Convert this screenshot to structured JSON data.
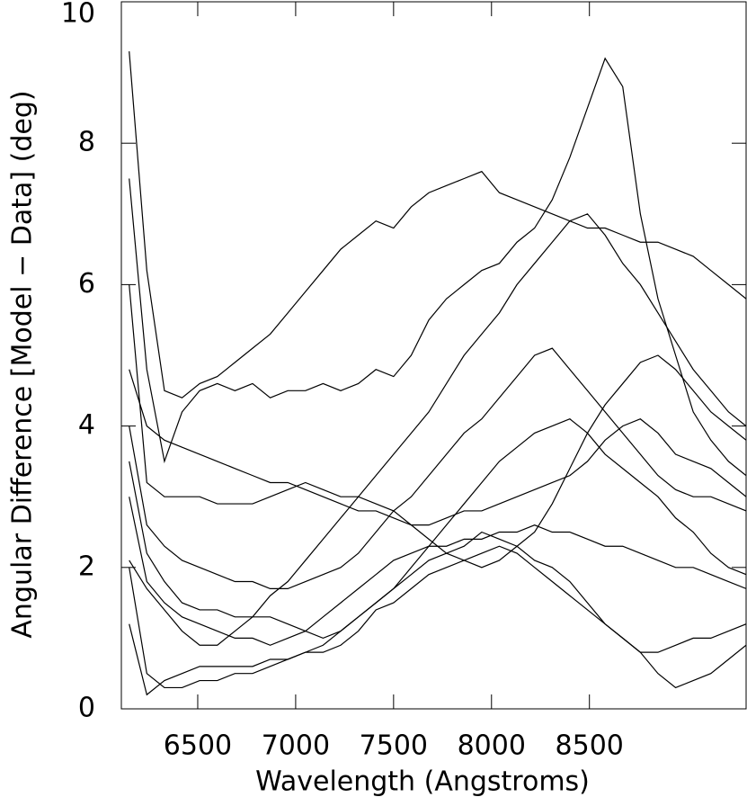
{
  "chart_data": {
    "type": "line",
    "x_label": "Wavelength (Angstroms)",
    "y_label": "Angular Difference [Model − Data] (deg)",
    "color": "#000000",
    "xlim": [
      6110,
      9300
    ],
    "xticks": [
      6500,
      7000,
      7500,
      8000,
      8500
    ],
    "ylim": [
      0,
      10
    ],
    "yticks": [
      0,
      2,
      4,
      6,
      8,
      10
    ],
    "x": [
      6150,
      6240,
      6330,
      6420,
      6510,
      6600,
      6690,
      6780,
      6870,
      6960,
      7050,
      7140,
      7230,
      7320,
      7410,
      7500,
      7590,
      7680,
      7770,
      7860,
      7950,
      8040,
      8130,
      8220,
      8310,
      8400,
      8490,
      8580,
      8670,
      8760,
      8850,
      8940,
      9030,
      9120,
      9210,
      9300
    ],
    "series": [
      {
        "values": [
          9.3,
          6.2,
          4.5,
          4.4,
          4.6,
          4.7,
          4.9,
          5.1,
          5.3,
          5.6,
          5.9,
          6.2,
          6.5,
          6.7,
          6.9,
          6.8,
          7.1,
          7.3,
          7.4,
          7.5,
          7.6,
          7.3,
          7.2,
          7.1,
          7.0,
          6.9,
          6.8,
          6.8,
          6.7,
          6.6,
          6.6,
          6.5,
          6.4,
          6.2,
          6.0,
          5.8
        ]
      },
      {
        "values": [
          7.5,
          4.8,
          3.5,
          4.2,
          4.5,
          4.6,
          4.5,
          4.6,
          4.4,
          4.5,
          4.5,
          4.6,
          4.5,
          4.6,
          4.8,
          4.7,
          5.0,
          5.5,
          5.8,
          6.0,
          6.2,
          6.3,
          6.6,
          6.8,
          7.2,
          7.8,
          8.5,
          9.2,
          8.8,
          7.0,
          5.8,
          5.0,
          4.2,
          3.8,
          3.5,
          3.3
        ]
      },
      {
        "values": [
          4.8,
          4.0,
          3.8,
          3.7,
          3.6,
          3.5,
          3.4,
          3.3,
          3.2,
          3.2,
          3.1,
          3.0,
          2.9,
          2.8,
          2.8,
          2.7,
          2.6,
          2.6,
          2.7,
          2.8,
          2.8,
          2.9,
          3.0,
          3.1,
          3.2,
          3.3,
          3.5,
          3.8,
          4.0,
          4.1,
          3.9,
          3.6,
          3.5,
          3.4,
          3.2,
          3.0
        ]
      },
      {
        "values": [
          3.0,
          1.8,
          1.5,
          1.3,
          1.2,
          1.1,
          1.0,
          1.0,
          0.9,
          1.0,
          1.1,
          1.3,
          1.5,
          1.7,
          1.9,
          2.1,
          2.2,
          2.3,
          2.3,
          2.4,
          2.4,
          2.5,
          2.5,
          2.6,
          2.5,
          2.5,
          2.4,
          2.3,
          2.3,
          2.2,
          2.1,
          2.0,
          2.0,
          1.9,
          1.8,
          1.7
        ]
      },
      {
        "values": [
          2.0,
          0.5,
          0.3,
          0.3,
          0.4,
          0.4,
          0.5,
          0.5,
          0.6,
          0.7,
          0.8,
          0.9,
          1.1,
          1.3,
          1.5,
          1.7,
          1.9,
          2.1,
          2.2,
          2.3,
          2.5,
          2.4,
          2.3,
          2.1,
          2.0,
          1.8,
          1.5,
          1.2,
          1.0,
          0.8,
          0.5,
          0.3,
          0.4,
          0.5,
          0.7,
          0.9
        ]
      },
      {
        "values": [
          4.0,
          2.6,
          2.3,
          2.1,
          2.0,
          1.9,
          1.8,
          1.8,
          1.7,
          1.7,
          1.8,
          1.9,
          2.0,
          2.2,
          2.5,
          2.8,
          3.0,
          3.3,
          3.6,
          3.9,
          4.1,
          4.4,
          4.7,
          5.0,
          5.1,
          4.8,
          4.5,
          4.2,
          3.9,
          3.6,
          3.3,
          3.1,
          3.0,
          3.0,
          2.9,
          2.8
        ]
      },
      {
        "values": [
          1.2,
          0.2,
          0.4,
          0.5,
          0.6,
          0.6,
          0.6,
          0.6,
          0.7,
          0.7,
          0.8,
          0.8,
          0.9,
          1.1,
          1.4,
          1.5,
          1.7,
          1.9,
          2.0,
          2.1,
          2.2,
          2.3,
          2.2,
          2.0,
          1.8,
          1.6,
          1.4,
          1.2,
          1.0,
          0.8,
          0.8,
          0.9,
          1.0,
          1.0,
          1.1,
          1.2
        ]
      },
      {
        "values": [
          3.5,
          2.2,
          1.8,
          1.5,
          1.4,
          1.4,
          1.3,
          1.3,
          1.3,
          1.2,
          1.1,
          1.0,
          1.1,
          1.3,
          1.5,
          1.7,
          2.0,
          2.3,
          2.6,
          2.9,
          3.2,
          3.5,
          3.7,
          3.9,
          4.0,
          4.1,
          3.9,
          3.6,
          3.4,
          3.2,
          3.0,
          2.7,
          2.5,
          2.2,
          2.0,
          1.9
        ]
      },
      {
        "values": [
          2.1,
          1.7,
          1.4,
          1.1,
          0.9,
          0.9,
          1.1,
          1.3,
          1.6,
          1.8,
          2.1,
          2.4,
          2.7,
          3.0,
          3.3,
          3.6,
          3.9,
          4.2,
          4.6,
          5.0,
          5.3,
          5.6,
          6.0,
          6.3,
          6.6,
          6.9,
          7.0,
          6.7,
          6.3,
          6.0,
          5.6,
          5.2,
          4.8,
          4.5,
          4.2,
          4.0
        ]
      },
      {
        "values": [
          6.0,
          3.2,
          3.0,
          3.0,
          3.0,
          2.9,
          2.9,
          2.9,
          3.0,
          3.1,
          3.2,
          3.1,
          3.0,
          3.0,
          2.9,
          2.8,
          2.6,
          2.4,
          2.2,
          2.1,
          2.0,
          2.1,
          2.3,
          2.5,
          2.9,
          3.4,
          3.9,
          4.3,
          4.6,
          4.9,
          5.0,
          4.8,
          4.5,
          4.2,
          4.0,
          3.8
        ]
      }
    ]
  }
}
